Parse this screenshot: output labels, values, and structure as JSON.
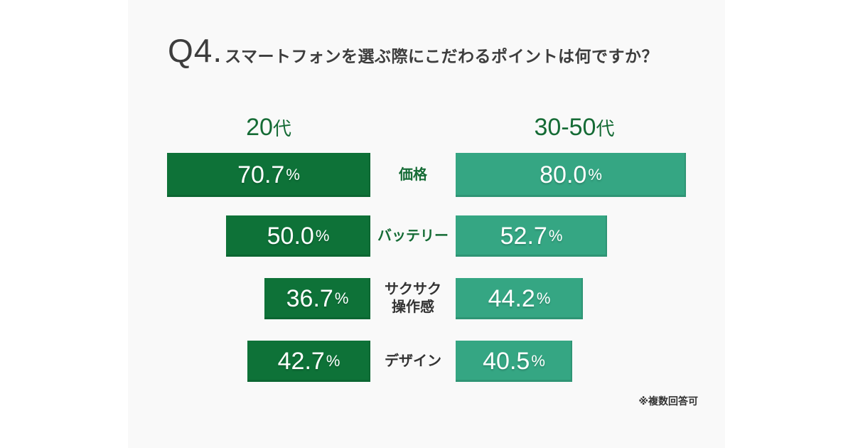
{
  "page": {
    "background": "#ffffff",
    "card_background": "#f9f9f9"
  },
  "title": {
    "prefix": "Q4.",
    "text": "スマートフォンを選ぶ際にこだわるポイントは何ですか？"
  },
  "footnote": "※複数回答可",
  "colors": {
    "bar_left": "#0e7238",
    "bar_right": "#35a683",
    "group_header_text": "#156b35",
    "category_label_green": "#156b35",
    "category_label_dark": "#333333",
    "title_text": "#3d3d3d",
    "value_text": "#ffffff"
  },
  "chart_data": {
    "type": "bar",
    "orientation": "horizontal-paired",
    "title": "Q4.スマートフォンを選ぶ際にこだわるポイントは何ですか？",
    "note": "※複数回答可",
    "unit": "%",
    "value_range": [
      0,
      100
    ],
    "grid": false,
    "legend_position": "column-headers-top",
    "groups": [
      {
        "num": "20",
        "suffix": "代"
      },
      {
        "num": "30-50",
        "suffix": "代"
      }
    ],
    "categories": [
      {
        "label": "価格",
        "lines": [
          "価格"
        ],
        "label_color_variant": "green"
      },
      {
        "label": "バッテリー",
        "lines": [
          "バッテリー"
        ],
        "label_color_variant": "green"
      },
      {
        "label": "サクサク操作感",
        "lines": [
          "サクサク",
          "操作感"
        ],
        "label_color_variant": "dark"
      },
      {
        "label": "デザイン",
        "lines": [
          "デザイン"
        ],
        "label_color_variant": "dark"
      }
    ],
    "series": [
      {
        "name": "20代",
        "values": [
          70.7,
          50.0,
          36.7,
          42.7
        ]
      },
      {
        "name": "30-50代",
        "values": [
          80.0,
          52.7,
          44.2,
          40.5
        ]
      }
    ]
  }
}
